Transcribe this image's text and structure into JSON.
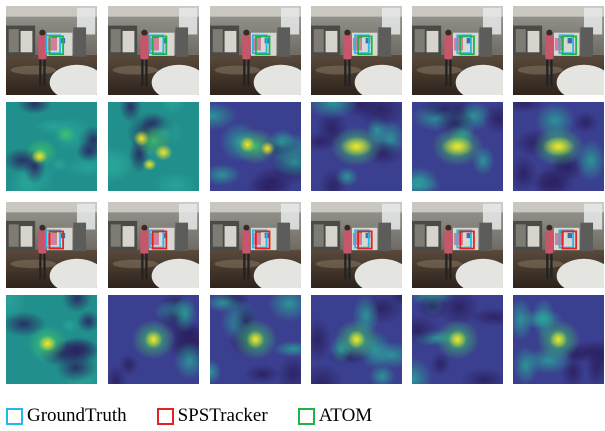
{
  "colors": {
    "groundtruth": "#29b6e8",
    "spstracker": "#e02424",
    "atom": "#1fb34a",
    "heatmap_low": "#3b3f8f",
    "heatmap_mid": "#21908c",
    "heatmap_high": "#f7e628"
  },
  "legend": {
    "items": [
      {
        "label": "GroundTruth",
        "color": "#29b6e8"
      },
      {
        "label": "SPSTracker",
        "color": "#e02424"
      },
      {
        "label": "ATOM",
        "color": "#1fb34a"
      }
    ]
  },
  "panels": {
    "atom_frames": [
      {
        "boxes": [
          "groundtruth",
          "atom"
        ],
        "heatmap": "multi-peak-diffuse"
      },
      {
        "boxes": [
          "groundtruth",
          "atom"
        ],
        "heatmap": "multi-peak"
      },
      {
        "boxes": [
          "groundtruth",
          "atom"
        ],
        "heatmap": "double-peak"
      },
      {
        "boxes": [
          "groundtruth",
          "atom"
        ],
        "heatmap": "elongated-peak"
      },
      {
        "boxes": [
          "groundtruth",
          "atom"
        ],
        "heatmap": "elongated-peak"
      },
      {
        "boxes": [
          "groundtruth",
          "atom"
        ],
        "heatmap": "elongated-peak"
      }
    ],
    "spstracker_frames": [
      {
        "boxes": [
          "groundtruth",
          "spstracker"
        ],
        "heatmap": "single-peak-noisy"
      },
      {
        "boxes": [
          "groundtruth",
          "spstracker"
        ],
        "heatmap": "single-peak"
      },
      {
        "boxes": [
          "groundtruth",
          "spstracker"
        ],
        "heatmap": "single-peak"
      },
      {
        "boxes": [
          "groundtruth",
          "spstracker"
        ],
        "heatmap": "single-peak"
      },
      {
        "boxes": [
          "groundtruth",
          "spstracker"
        ],
        "heatmap": "single-peak"
      },
      {
        "boxes": [
          "groundtruth",
          "spstracker"
        ],
        "heatmap": "single-peak"
      }
    ]
  }
}
